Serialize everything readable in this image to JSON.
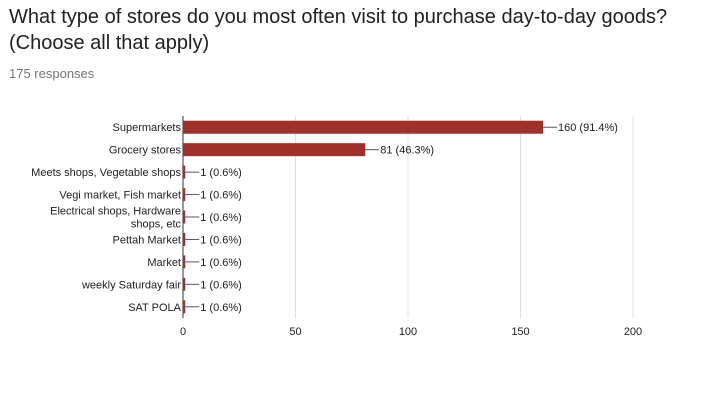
{
  "header": {
    "question": "What type of stores do you most often visit to purchase day-to-day goods? (Choose all that apply)",
    "responses": "175 responses"
  },
  "colors": {
    "bar": "#a0302a",
    "grid": "#e0e0e0",
    "axis": "#333333",
    "text": "#212121"
  },
  "chart_data": {
    "type": "bar",
    "orientation": "horizontal",
    "categories": [
      "Supermarkets",
      "Grocery stores",
      "Meets shops, Vegetable shops",
      "Vegi market, Fish market",
      "Electrical shops, Hardware shops, etc",
      "Pettah Market",
      "Market",
      "weekly Saturday fair",
      "SAT POLA"
    ],
    "category_lines": [
      [
        "Supermarkets"
      ],
      [
        "Grocery stores"
      ],
      [
        "Meets shops, Vegetable shops"
      ],
      [
        "Vegi market, Fish market"
      ],
      [
        "Electrical shops, Hardware",
        "shops, etc"
      ],
      [
        "Pettah Market"
      ],
      [
        "Market"
      ],
      [
        "weekly Saturday fair"
      ],
      [
        "SAT POLA"
      ]
    ],
    "values": [
      160,
      81,
      1,
      1,
      1,
      1,
      1,
      1,
      1
    ],
    "data_labels": [
      "160 (91.4%)",
      "81 (46.3%)",
      "1 (0.6%)",
      "1 (0.6%)",
      "1 (0.6%)",
      "1 (0.6%)",
      "1 (0.6%)",
      "1 (0.6%)",
      "1 (0.6%)"
    ],
    "xlim": [
      0,
      200
    ],
    "xticks": [
      0,
      50,
      100,
      150,
      200
    ],
    "grid": true
  }
}
